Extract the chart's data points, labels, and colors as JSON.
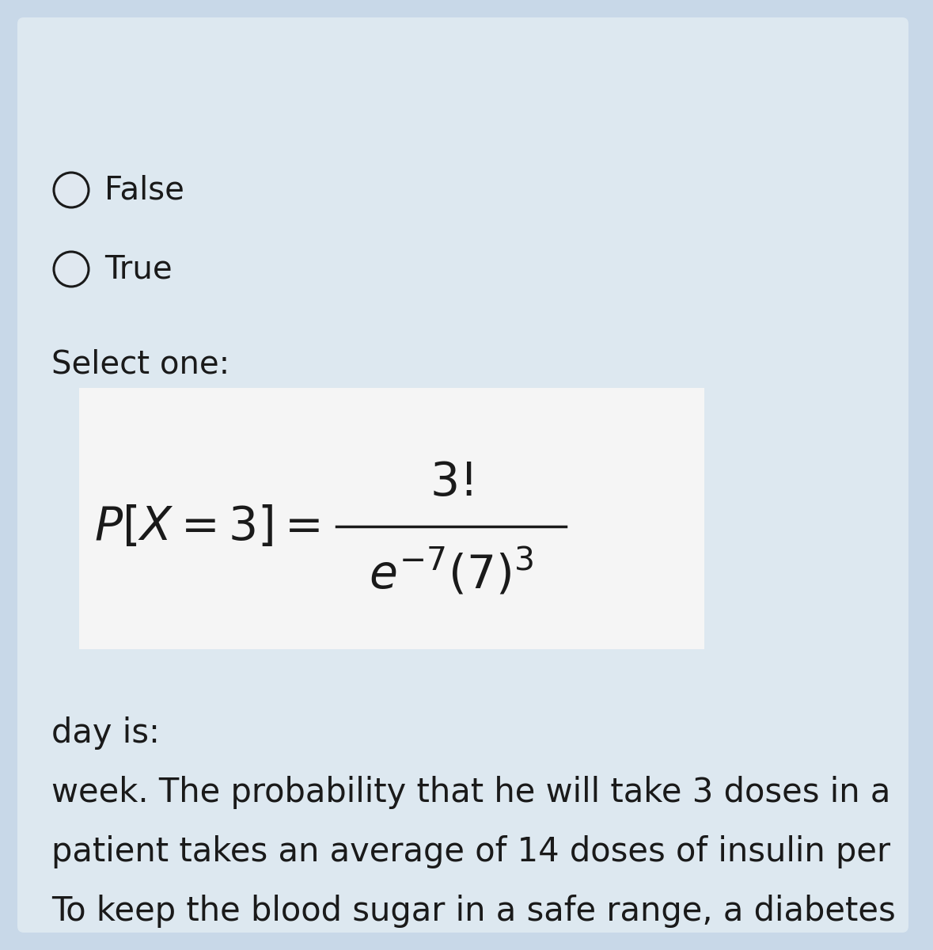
{
  "bg_outer": "#c8d8e8",
  "bg_inner": "#dde8f0",
  "white_bg": "#f5f5f5",
  "text_color": "#1a1a1a",
  "circle_fill": "#e0e8f0",
  "question_lines": [
    "To keep the blood sugar in a safe range, a diabetes",
    "patient takes an average of 14 doses of insulin per",
    "week. The probability that he will take 3 doses in a",
    "day is:"
  ],
  "select_one_label": "Select one:",
  "option_true": "True",
  "option_false": "False",
  "fig_width": 11.79,
  "fig_height": 12.0,
  "dpi": 100
}
